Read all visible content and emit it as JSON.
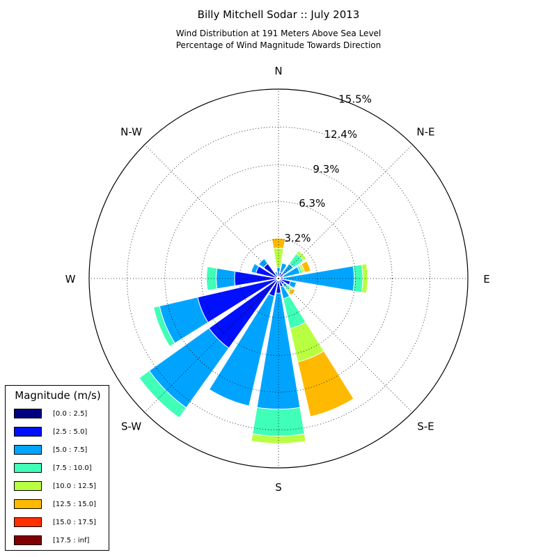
{
  "header": {
    "title": "Billy Mitchell Sodar :: July 2013",
    "subtitle_line1": "Wind Distribution at 191 Meters Above Sea Level",
    "subtitle_line2": "Percentage of Wind Magnitude Towards Direction"
  },
  "chart_data": {
    "type": "windrose",
    "title": "Billy Mitchell Sodar :: July 2013",
    "subtitle": "Wind Distribution at 191 Meters Above Sea Level / Percentage of Wind Magnitude Towards Direction",
    "radial_ticks": [
      "3.2%",
      "6.3%",
      "9.3%",
      "12.4%",
      "15.5%"
    ],
    "radial_tick_values": [
      3.2,
      6.3,
      9.3,
      12.4,
      15.5
    ],
    "rmax": 15.5,
    "direction_labels": [
      "N",
      "N-E",
      "E",
      "S-E",
      "S",
      "S-W",
      "W",
      "N-W"
    ],
    "grid": true,
    "legend_title": "Magnitude (m/s)",
    "legend_position": "bottom-left",
    "bins": [
      {
        "label": "[0.0 : 2.5]",
        "color": "#000080"
      },
      {
        "label": "[2.5 : 5.0]",
        "color": "#0010ff"
      },
      {
        "label": "[5.0 : 7.5]",
        "color": "#00a4ff"
      },
      {
        "label": "[7.5 : 10.0]",
        "color": "#40ffb7"
      },
      {
        "label": "[10.0 : 12.5]",
        "color": "#b7ff40"
      },
      {
        "label": "[12.5 : 15.0]",
        "color": "#ffb900"
      },
      {
        "label": "[15.0 : 17.5]",
        "color": "#ff3000"
      },
      {
        "label": "[17.5 : inf]",
        "color": "#800000"
      }
    ],
    "direction_degrees": [
      0,
      22.5,
      45,
      67.5,
      90,
      112.5,
      135,
      157.5,
      180,
      202.5,
      225,
      247.5,
      270,
      292.5,
      315,
      337.5
    ],
    "percentages": [
      [
        0.1,
        0.4,
        0.4,
        0.0,
        1.6,
        0.8,
        0.0,
        0.0
      ],
      [
        0.1,
        0.4,
        0.8,
        0.0,
        0.0,
        0.0,
        0.0,
        0.0
      ],
      [
        0.1,
        0.4,
        1.0,
        1.0,
        0.3,
        0.0,
        0.0,
        0.0
      ],
      [
        0.1,
        0.3,
        1.4,
        0.2,
        0.2,
        0.5,
        0.0,
        0.0
      ],
      [
        0.1,
        0.3,
        5.8,
        0.7,
        0.4,
        0.0,
        0.0,
        0.0
      ],
      [
        0.1,
        0.9,
        0.5,
        0.0,
        0.0,
        0.0,
        0.0,
        0.0
      ],
      [
        0.1,
        0.5,
        0.3,
        0.3,
        0.2,
        0.3,
        0.0,
        0.0
      ],
      [
        0.1,
        0.6,
        1.0,
        2.5,
        2.8,
        4.6,
        0.0,
        0.0
      ],
      [
        0.1,
        1.1,
        9.5,
        2.2,
        0.6,
        0.0,
        0.0,
        0.0
      ],
      [
        0.1,
        1.4,
        9.2,
        0.0,
        0.0,
        0.0,
        0.0,
        0.0
      ],
      [
        0.1,
        6.9,
        6.0,
        1.0,
        0.0,
        0.0,
        0.0,
        0.0
      ],
      [
        0.1,
        6.7,
        3.2,
        0.5,
        0.0,
        0.0,
        0.0,
        0.0
      ],
      [
        0.1,
        3.5,
        1.5,
        0.8,
        0.0,
        0.0,
        0.0,
        0.0
      ],
      [
        0.1,
        1.8,
        0.4,
        0.0,
        0.0,
        0.0,
        0.0,
        0.0
      ],
      [
        0.1,
        1.4,
        0.5,
        0.0,
        0.0,
        0.0,
        0.0,
        0.0
      ],
      [
        0.1,
        0.1,
        0.4,
        0.0,
        0.0,
        0.0,
        0.0,
        0.0
      ]
    ]
  }
}
